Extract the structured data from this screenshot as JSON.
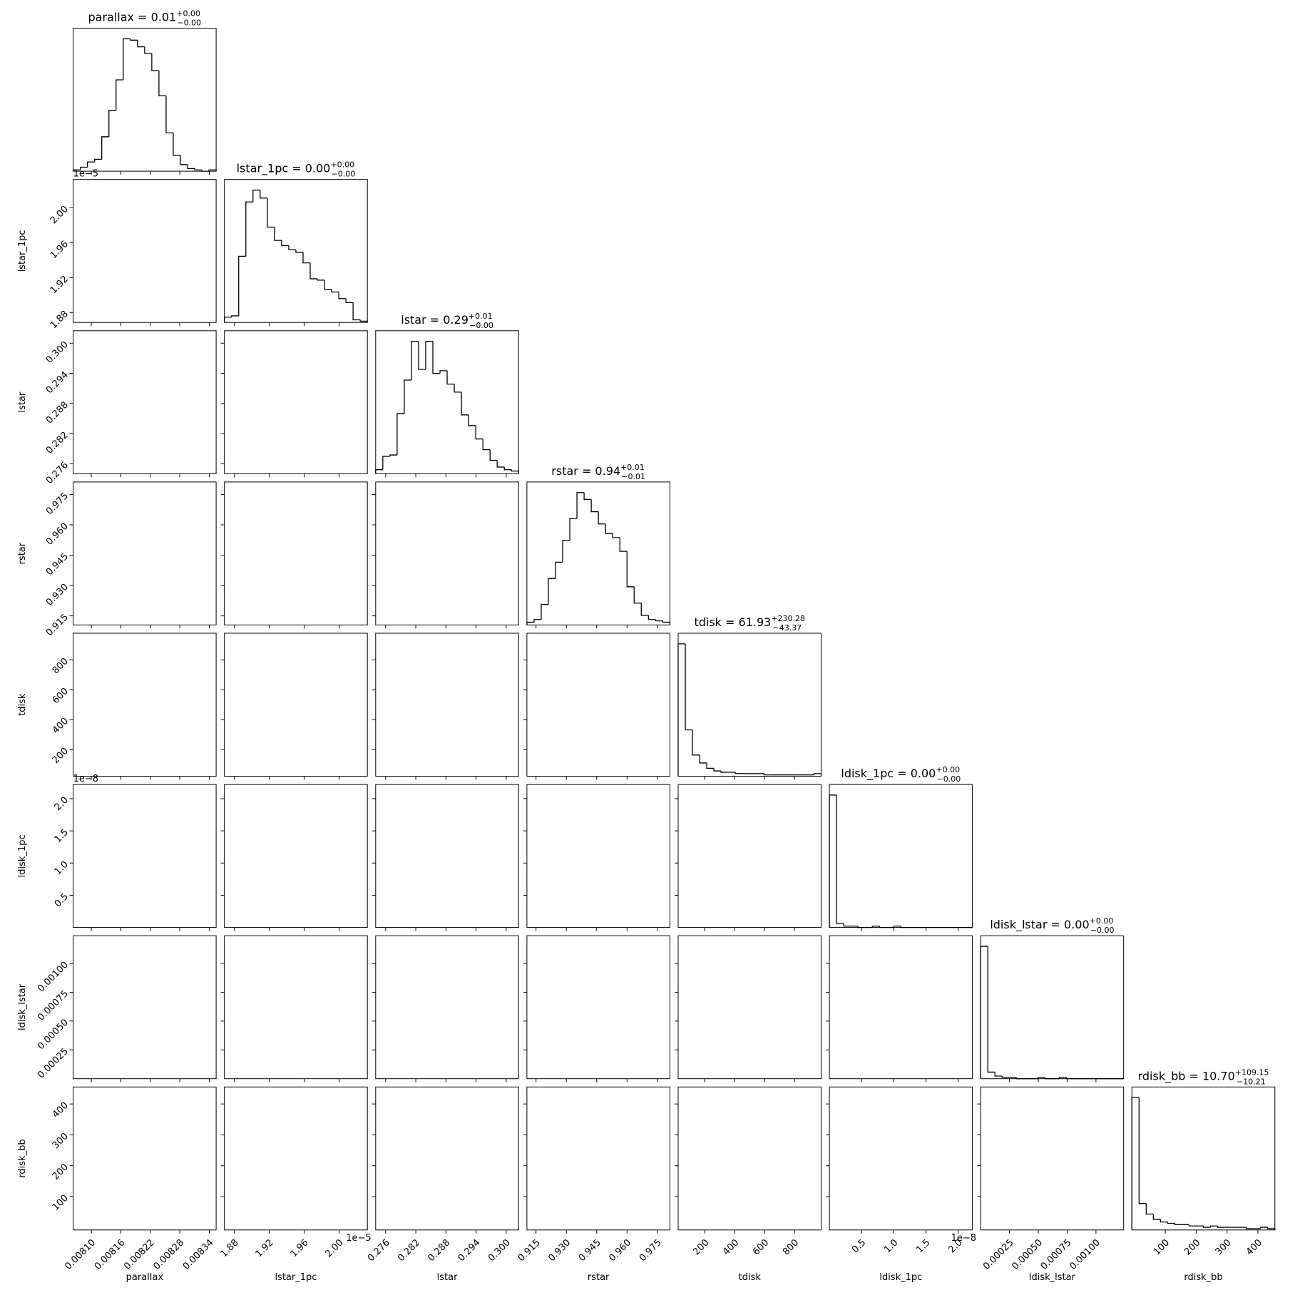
{
  "chart_data": {
    "type": "corner",
    "color": "#000000",
    "variables": [
      {
        "name": "parallax",
        "title": {
          "text": "parallax = 0.01",
          "upper": "+0.00",
          "lower": "−0.00"
        },
        "lim": [
          0.008063,
          0.008354
        ],
        "ticks": [
          {
            "value": 0.0081,
            "label": "0.00810"
          },
          0.00816,
          0.00822,
          0.00828,
          0.00834
        ],
        "counts": [
          1,
          3,
          7,
          9,
          26,
          46,
          69,
          100,
          99,
          94,
          89,
          76,
          57,
          29,
          12,
          5,
          2,
          1,
          0,
          1
        ]
      },
      {
        "name": "lstar_1pc",
        "title": {
          "text": "lstar_1pc = 0.00",
          "upper": "+0.00",
          "lower": "−0.00"
        },
        "lim": [
          1.8686,
          2.0324
        ],
        "offset": "1e−5",
        "ticks": [
          1.88,
          1.92,
          1.96,
          {
            "value": 2.0,
            "label": "2.00"
          }
        ],
        "counts": [
          4,
          5,
          50,
          91,
          100,
          94,
          72,
          62,
          58,
          55,
          53,
          45,
          33,
          32,
          25,
          23,
          18,
          15,
          2,
          1
        ]
      },
      {
        "name": "lstar",
        "title": {
          "text": "lstar = 0.29",
          "upper": "+0.01",
          "lower": "−0.00"
        },
        "lim": [
          0.27401,
          0.30248
        ],
        "ticks": [
          0.276,
          0.282,
          0.288,
          0.294,
          {
            "value": 0.3,
            "label": "0.300"
          }
        ],
        "counts": [
          3,
          13,
          14,
          45,
          70,
          99,
          78,
          99,
          75,
          77,
          67,
          61,
          44,
          36,
          26,
          18,
          10,
          5,
          3,
          2
        ]
      },
      {
        "name": "rstar",
        "title": {
          "text": "rstar = 0.94",
          "upper": "+0.01",
          "lower": "−0.01"
        },
        "lim": [
          0.9105,
          0.9812
        ],
        "ticks": [
          0.915,
          {
            "value": 0.93,
            "label": "0.930"
          },
          0.945,
          {
            "value": 0.96,
            "label": "0.960"
          },
          0.975
        ],
        "counts": [
          2,
          4,
          15,
          34,
          46,
          62,
          78,
          97,
          92,
          83,
          74,
          67,
          64,
          54,
          28,
          16,
          7,
          4,
          3,
          2
        ]
      },
      {
        "name": "tdisk",
        "title": {
          "text": "tdisk = 61.93",
          "upper": "+230.28",
          "lower": "−43.37"
        },
        "lim": [
          22,
          978
        ],
        "ticks": [
          200,
          400,
          600,
          800
        ],
        "counts": [
          100,
          35,
          16,
          10,
          6,
          4,
          3,
          3,
          2,
          2,
          2,
          2,
          1,
          1,
          1,
          1,
          1,
          1,
          1,
          2
        ]
      },
      {
        "name": "ldisk_1pc",
        "title": {
          "text": "ldisk_1pc = 0.00",
          "upper": "+0.00",
          "lower": "−0.00"
        },
        "lim": [
          0,
          2.22
        ],
        "offset": "1e−8",
        "ticks": [
          0.5,
          {
            "value": 1.0,
            "label": "1.0"
          },
          1.5,
          {
            "value": 2.0,
            "label": "2.0"
          }
        ],
        "counts": [
          100,
          3,
          1,
          1,
          0,
          0,
          1,
          0,
          0,
          1,
          0,
          0,
          0,
          0,
          0,
          0,
          0,
          0,
          0,
          0
        ]
      },
      {
        "name": "ldisk_lstar",
        "title": {
          "text": "ldisk_lstar = 0.00",
          "upper": "+0.00",
          "lower": "−0.00"
        },
        "lim": [
          0,
          0.00124
        ],
        "ticks": [
          0.00025,
          {
            "value": 0.0005,
            "label": "0.00050"
          },
          0.00075,
          {
            "value": 0.001,
            "label": "0.00100"
          }
        ],
        "counts": [
          100,
          5,
          2,
          1,
          1,
          0,
          0,
          0,
          1,
          0,
          0,
          1,
          0,
          0,
          0,
          0,
          0,
          0,
          0,
          0
        ]
      },
      {
        "name": "rdisk_bb",
        "title": {
          "text": "rdisk_bb = 10.70",
          "upper": "+109.15",
          "lower": "−10.21"
        },
        "lim": [
          -8,
          455
        ],
        "ticks": [
          100,
          200,
          300,
          400
        ],
        "counts": [
          100,
          20,
          12,
          8,
          6,
          5,
          4,
          4,
          3,
          3,
          2,
          3,
          2,
          2,
          2,
          2,
          1,
          1,
          2,
          1
        ]
      }
    ]
  }
}
